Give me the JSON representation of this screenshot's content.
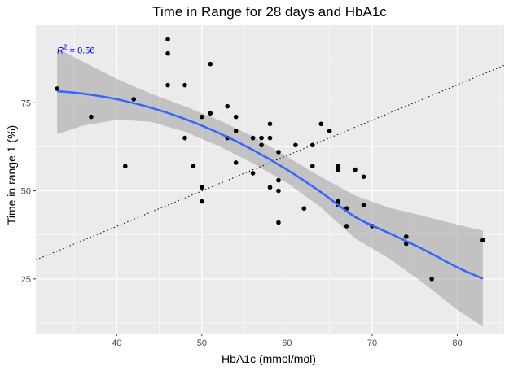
{
  "chart_data": {
    "type": "scatter",
    "title": "Time in Range for 28 days and HbA1c",
    "xlabel": "HbA1c (mmol/mol)",
    "ylabel": "Time in range 1 (%)",
    "xlim": [
      30.5,
      85.5
    ],
    "ylim": [
      9.5,
      97
    ],
    "xticks": [
      40,
      50,
      60,
      70,
      80
    ],
    "yticks": [
      25,
      50,
      75
    ],
    "grid": true,
    "annotation": {
      "text_prefix": "R",
      "superscript": "2",
      "text_suffix": " = 0.56",
      "x": 33,
      "y": 90,
      "color": "#0000ff"
    },
    "points": [
      [
        33,
        79
      ],
      [
        37,
        71
      ],
      [
        41,
        57
      ],
      [
        42,
        76
      ],
      [
        46,
        93
      ],
      [
        46,
        89
      ],
      [
        46,
        80
      ],
      [
        48,
        80
      ],
      [
        48,
        65
      ],
      [
        49,
        57
      ],
      [
        50,
        71
      ],
      [
        50,
        51
      ],
      [
        50,
        47
      ],
      [
        51,
        86
      ],
      [
        51,
        72
      ],
      [
        53,
        74
      ],
      [
        53,
        65
      ],
      [
        54,
        71
      ],
      [
        54,
        67
      ],
      [
        54,
        58
      ],
      [
        56,
        65
      ],
      [
        56,
        55
      ],
      [
        57,
        65
      ],
      [
        57,
        63
      ],
      [
        58,
        69
      ],
      [
        58,
        65
      ],
      [
        58,
        51
      ],
      [
        59,
        61
      ],
      [
        59,
        53
      ],
      [
        59,
        50
      ],
      [
        59,
        41
      ],
      [
        61,
        63
      ],
      [
        62,
        45
      ],
      [
        63,
        63
      ],
      [
        63,
        57
      ],
      [
        64,
        69
      ],
      [
        65,
        67
      ],
      [
        66,
        57
      ],
      [
        66,
        56
      ],
      [
        66,
        47
      ],
      [
        66,
        46
      ],
      [
        67,
        45
      ],
      [
        67,
        40
      ],
      [
        68,
        56
      ],
      [
        69,
        54
      ],
      [
        69,
        46
      ],
      [
        70,
        40
      ],
      [
        74,
        37
      ],
      [
        74,
        35
      ],
      [
        77,
        25
      ],
      [
        83,
        36
      ]
    ],
    "smooth_fit": {
      "color": "#3366ff",
      "x": [
        33,
        36,
        40,
        44,
        48,
        52,
        56,
        60,
        64,
        68,
        72,
        76,
        80,
        83
      ],
      "y": [
        78.3,
        77.6,
        76.0,
        73.6,
        70.4,
        66.4,
        61.6,
        56.0,
        49.6,
        42.6,
        38.0,
        33.4,
        28.3,
        25.1
      ],
      "upper": [
        90.5,
        86.7,
        81.8,
        77.6,
        74.0,
        70.1,
        65.4,
        59.7,
        53.9,
        48.7,
        45.2,
        42.9,
        40.4,
        38.7
      ],
      "lower": [
        66.1,
        68.5,
        70.2,
        69.6,
        66.8,
        62.7,
        57.8,
        52.3,
        45.3,
        36.5,
        30.8,
        23.9,
        16.2,
        11.5
      ]
    },
    "reference_line": {
      "style": "dotted",
      "x": [
        30.5,
        85.5
      ],
      "y": [
        30.4,
        85.6
      ]
    }
  }
}
